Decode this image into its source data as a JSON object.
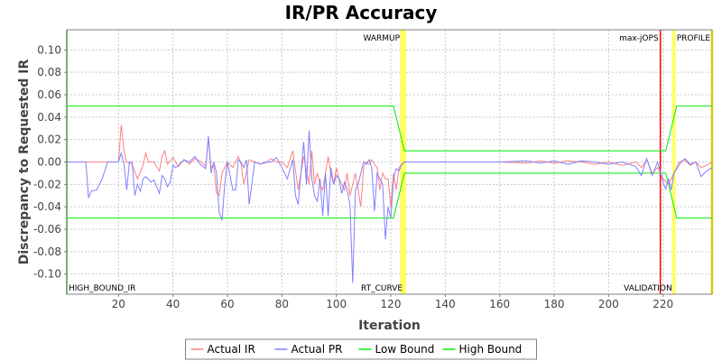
{
  "chart_data": {
    "type": "line",
    "title": "IR/PR Accuracy",
    "xlabel": "Iteration",
    "ylabel": "Discrepancy to Requested IR",
    "xlim": [
      1,
      238
    ],
    "ylim": [
      -0.118,
      0.118
    ],
    "x_ticks": [
      20,
      40,
      60,
      80,
      100,
      120,
      140,
      160,
      180,
      200,
      220
    ],
    "y_ticks": [
      -0.1,
      -0.08,
      -0.06,
      -0.04,
      -0.02,
      0.0,
      0.02,
      0.04,
      0.06,
      0.08,
      0.1
    ],
    "y_tick_labels": [
      "-0.10",
      "-0.08",
      "-0.06",
      "-0.04",
      "-0.02",
      "0.00",
      "0.02",
      "0.04",
      "0.06",
      "0.08",
      "0.10"
    ],
    "grid": true,
    "legend_position": "bottom",
    "markers": [
      {
        "label": "HIGH_BOUND_IR",
        "x": 1,
        "color": "#00aa00",
        "label_pos": "bottom"
      },
      {
        "label": "WARMUP",
        "x": 124,
        "color": "#ffff66",
        "label_pos": "top"
      },
      {
        "label": "RT_CURVE",
        "x": 125,
        "color": "#ffff66",
        "label_pos": "bottom"
      },
      {
        "label": "max-jOPS",
        "x": 219,
        "color": "#ff0000",
        "label_pos": "top"
      },
      {
        "label": "VALIDATION",
        "x": 224,
        "color": "#ffff66",
        "label_pos": "bottom"
      },
      {
        "label": "PROFILE",
        "x": 238,
        "color": "#ffff66",
        "label_pos": "top"
      }
    ],
    "series": [
      {
        "name": "Actual IR",
        "color": "#ff8080",
        "points": [
          [
            1,
            0
          ],
          [
            8,
            0
          ],
          [
            15,
            0
          ],
          [
            20,
            0
          ],
          [
            21,
            0.033
          ],
          [
            22,
            0.01
          ],
          [
            23,
            0
          ],
          [
            25,
            -0.002
          ],
          [
            27,
            -0.015
          ],
          [
            29,
            -0.003
          ],
          [
            30,
            0.008
          ],
          [
            31,
            0
          ],
          [
            33,
            0
          ],
          [
            35,
            -0.008
          ],
          [
            36,
            0.005
          ],
          [
            37,
            0.01
          ],
          [
            38,
            -0.002
          ],
          [
            40,
            0.004
          ],
          [
            42,
            -0.004
          ],
          [
            44,
            0.002
          ],
          [
            46,
            -0.002
          ],
          [
            48,
            0.003
          ],
          [
            50,
            0.001
          ],
          [
            52,
            -0.004
          ],
          [
            53,
            0.022
          ],
          [
            54,
            -0.005
          ],
          [
            55,
            -0.002
          ],
          [
            56,
            -0.028
          ],
          [
            57,
            -0.03
          ],
          [
            58,
            -0.01
          ],
          [
            60,
            0
          ],
          [
            62,
            -0.005
          ],
          [
            64,
            0.005
          ],
          [
            65,
            -0.002
          ],
          [
            66,
            -0.02
          ],
          [
            68,
            0.002
          ],
          [
            70,
            0
          ],
          [
            72,
            -0.002
          ],
          [
            74,
            -0.001
          ],
          [
            76,
            0.003
          ],
          [
            78,
            0
          ],
          [
            80,
            0
          ],
          [
            82,
            -0.005
          ],
          [
            84,
            0.01
          ],
          [
            86,
            -0.025
          ],
          [
            88,
            0.005
          ],
          [
            90,
            -0.02
          ],
          [
            91,
            0.01
          ],
          [
            92,
            -0.02
          ],
          [
            93,
            -0.01
          ],
          [
            94,
            -0.02
          ],
          [
            95,
            -0.025
          ],
          [
            96,
            -0.01
          ],
          [
            97,
            0.005
          ],
          [
            98,
            -0.01
          ],
          [
            99,
            -0.02
          ],
          [
            100,
            -0.005
          ],
          [
            101,
            -0.015
          ],
          [
            102,
            -0.02
          ],
          [
            103,
            -0.025
          ],
          [
            104,
            -0.01
          ],
          [
            105,
            -0.03
          ],
          [
            106,
            -0.02
          ],
          [
            107,
            -0.01
          ],
          [
            108,
            -0.025
          ],
          [
            109,
            -0.04
          ],
          [
            110,
            -0.005
          ],
          [
            111,
            0
          ],
          [
            112,
            -0.002
          ],
          [
            113,
            0.002
          ],
          [
            114,
            -0.002
          ],
          [
            115,
            -0.005
          ],
          [
            116,
            -0.025
          ],
          [
            117,
            -0.01
          ],
          [
            118,
            -0.015
          ],
          [
            119,
            -0.015
          ],
          [
            120,
            -0.04
          ],
          [
            121,
            -0.01
          ],
          [
            122,
            -0.025
          ],
          [
            123,
            -0.005
          ],
          [
            124,
            -0.002
          ],
          [
            125,
            0
          ],
          [
            130,
            0
          ],
          [
            140,
            0
          ],
          [
            150,
            0
          ],
          [
            160,
            0
          ],
          [
            170,
            -0.001
          ],
          [
            175,
            0.001
          ],
          [
            180,
            -0.001
          ],
          [
            185,
            0.001
          ],
          [
            190,
            0
          ],
          [
            195,
            -0.002
          ],
          [
            200,
            0
          ],
          [
            205,
            -0.003
          ],
          [
            210,
            0
          ],
          [
            212,
            -0.005
          ],
          [
            214,
            0.002
          ],
          [
            216,
            -0.01
          ],
          [
            218,
            -0.005
          ],
          [
            220,
            -0.015
          ],
          [
            222,
            -0.02
          ],
          [
            224,
            -0.01
          ],
          [
            226,
            0
          ],
          [
            228,
            0.002
          ],
          [
            230,
            -0.003
          ],
          [
            232,
            0
          ],
          [
            234,
            -0.005
          ],
          [
            236,
            -0.003
          ],
          [
            238,
            0
          ]
        ]
      },
      {
        "name": "Actual PR",
        "color": "#8080ff",
        "points": [
          [
            1,
            0
          ],
          [
            8,
            0
          ],
          [
            9,
            -0.032
          ],
          [
            10,
            -0.026
          ],
          [
            12,
            -0.025
          ],
          [
            14,
            -0.015
          ],
          [
            16,
            0
          ],
          [
            18,
            0
          ],
          [
            20,
            0
          ],
          [
            21,
            0.008
          ],
          [
            22,
            -0.002
          ],
          [
            23,
            -0.025
          ],
          [
            24,
            0
          ],
          [
            25,
            0
          ],
          [
            26,
            -0.03
          ],
          [
            27,
            -0.02
          ],
          [
            28,
            -0.026
          ],
          [
            29,
            -0.015
          ],
          [
            30,
            -0.013
          ],
          [
            32,
            -0.018
          ],
          [
            33,
            -0.016
          ],
          [
            35,
            -0.028
          ],
          [
            36,
            -0.012
          ],
          [
            37,
            -0.015
          ],
          [
            38,
            -0.022
          ],
          [
            39,
            -0.018
          ],
          [
            40,
            -0.003
          ],
          [
            41,
            -0.005
          ],
          [
            42,
            -0.003
          ],
          [
            44,
            0.002
          ],
          [
            46,
            0
          ],
          [
            48,
            0.005
          ],
          [
            50,
            -0.002
          ],
          [
            52,
            -0.006
          ],
          [
            53,
            0.023
          ],
          [
            54,
            -0.01
          ],
          [
            55,
            0
          ],
          [
            56,
            -0.01
          ],
          [
            57,
            -0.045
          ],
          [
            58,
            -0.052
          ],
          [
            59,
            -0.02
          ],
          [
            60,
            0
          ],
          [
            62,
            -0.025
          ],
          [
            63,
            -0.025
          ],
          [
            64,
            0.002
          ],
          [
            65,
            0
          ],
          [
            66,
            -0.005
          ],
          [
            67,
            0.002
          ],
          [
            68,
            -0.038
          ],
          [
            70,
            0
          ],
          [
            72,
            -0.002
          ],
          [
            74,
            0
          ],
          [
            76,
            0
          ],
          [
            78,
            0.004
          ],
          [
            80,
            -0.005
          ],
          [
            82,
            -0.015
          ],
          [
            84,
            0.002
          ],
          [
            85,
            -0.03
          ],
          [
            86,
            -0.038
          ],
          [
            88,
            0.018
          ],
          [
            89,
            -0.02
          ],
          [
            90,
            0.028
          ],
          [
            91,
            -0.015
          ],
          [
            92,
            -0.03
          ],
          [
            93,
            -0.035
          ],
          [
            94,
            -0.015
          ],
          [
            95,
            -0.048
          ],
          [
            96,
            -0.01
          ],
          [
            97,
            -0.048
          ],
          [
            98,
            -0.005
          ],
          [
            99,
            -0.02
          ],
          [
            100,
            -0.012
          ],
          [
            101,
            -0.015
          ],
          [
            102,
            -0.028
          ],
          [
            103,
            -0.018
          ],
          [
            104,
            -0.025
          ],
          [
            105,
            -0.038
          ],
          [
            106,
            -0.108
          ],
          [
            107,
            -0.025
          ],
          [
            108,
            -0.02
          ],
          [
            109,
            -0.01
          ],
          [
            110,
            0
          ],
          [
            111,
            -0.002
          ],
          [
            112,
            0.002
          ],
          [
            113,
            -0.005
          ],
          [
            114,
            -0.044
          ],
          [
            115,
            -0.01
          ],
          [
            116,
            -0.015
          ],
          [
            117,
            -0.02
          ],
          [
            118,
            -0.069
          ],
          [
            119,
            -0.04
          ],
          [
            120,
            -0.05
          ],
          [
            121,
            -0.015
          ],
          [
            122,
            -0.006
          ],
          [
            123,
            -0.008
          ],
          [
            124,
            -0.002
          ],
          [
            125,
            0
          ],
          [
            130,
            0
          ],
          [
            140,
            0
          ],
          [
            150,
            0
          ],
          [
            160,
            0
          ],
          [
            170,
            0.001
          ],
          [
            175,
            -0.001
          ],
          [
            180,
            0.001
          ],
          [
            185,
            -0.002
          ],
          [
            190,
            0.001
          ],
          [
            195,
            0
          ],
          [
            200,
            -0.002
          ],
          [
            205,
            0
          ],
          [
            210,
            -0.004
          ],
          [
            212,
            -0.012
          ],
          [
            214,
            0.003
          ],
          [
            216,
            -0.012
          ],
          [
            218,
            0
          ],
          [
            220,
            -0.018
          ],
          [
            221,
            -0.024
          ],
          [
            222,
            -0.015
          ],
          [
            223,
            -0.025
          ],
          [
            224,
            -0.01
          ],
          [
            226,
            -0.002
          ],
          [
            228,
            0.003
          ],
          [
            230,
            -0.002
          ],
          [
            232,
            0
          ],
          [
            234,
            -0.013
          ],
          [
            236,
            -0.008
          ],
          [
            238,
            -0.005
          ]
        ]
      },
      {
        "name": "Low Bound",
        "color": "#00ee00",
        "points": [
          [
            1,
            -0.05
          ],
          [
            121,
            -0.05
          ],
          [
            125,
            -0.01
          ],
          [
            219,
            -0.01
          ],
          [
            221,
            -0.01
          ],
          [
            225,
            -0.05
          ],
          [
            238,
            -0.05
          ]
        ]
      },
      {
        "name": "High Bound",
        "color": "#00ee00",
        "points": [
          [
            1,
            0.05
          ],
          [
            121,
            0.05
          ],
          [
            125,
            0.01
          ],
          [
            219,
            0.01
          ],
          [
            221,
            0.01
          ],
          [
            225,
            0.05
          ],
          [
            238,
            0.05
          ]
        ]
      }
    ]
  }
}
